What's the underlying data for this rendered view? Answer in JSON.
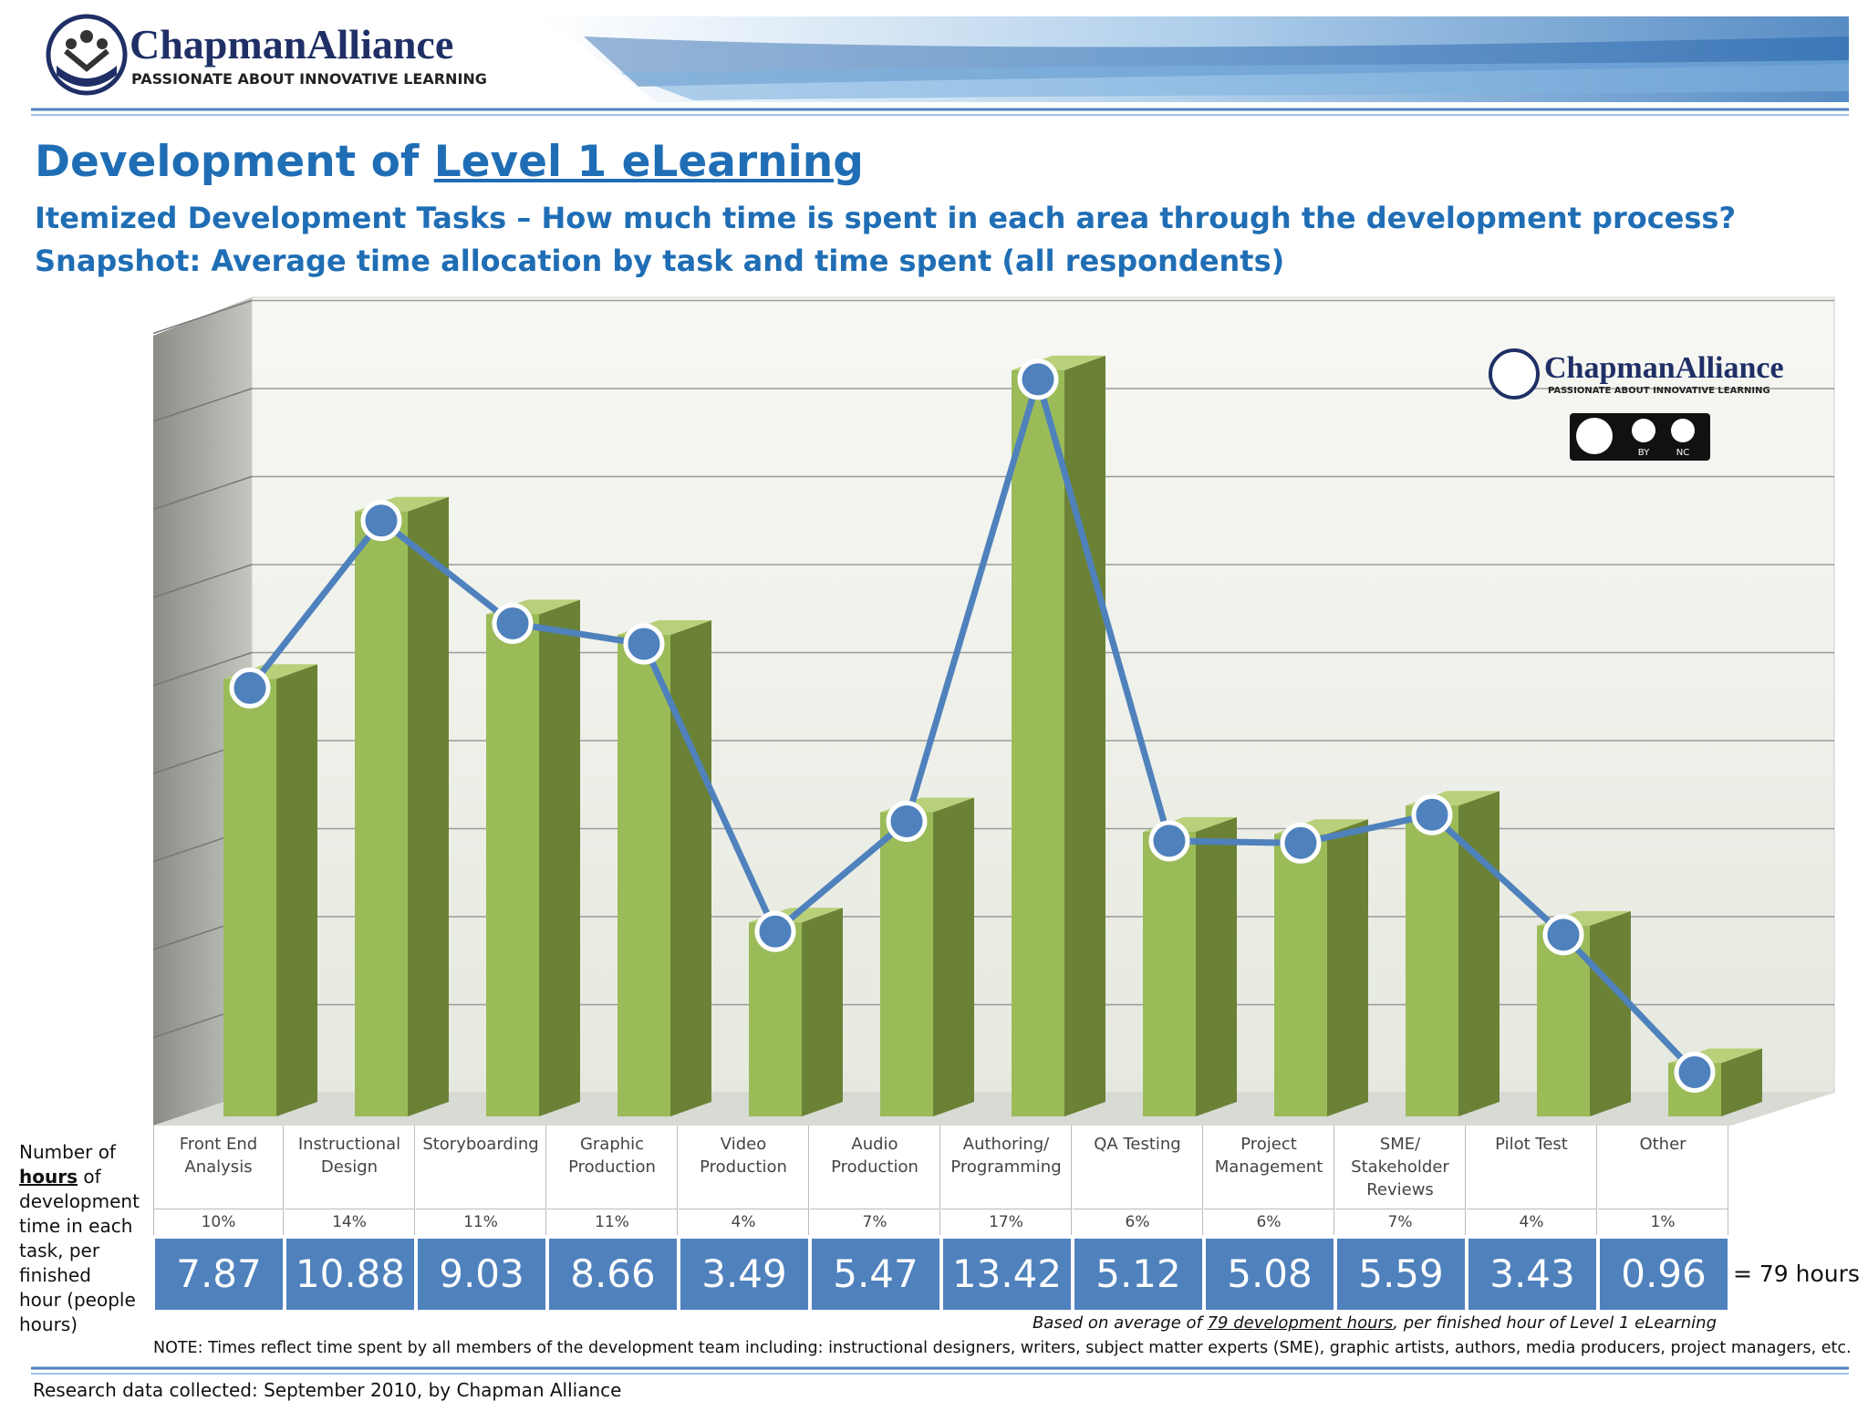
{
  "header": {
    "logo_name": "ChapmanAlliance",
    "logo_tagline": "PASSIONATE ABOUT INNOVATIVE LEARNING"
  },
  "title_prefix": "Development of",
  "title_emphasis": "Level 1 eLearning",
  "subtitle": "Itemized Development Tasks – How much time is spent in each area through the development process?",
  "snapshot": "Snapshot: Average time allocation by task and time spent (all respondents)",
  "chart_data": {
    "type": "bar",
    "categories": [
      "Front End Analysis",
      "Instructional Design",
      "Storyboarding",
      "Graphic Production",
      "Video Production",
      "Audio Production",
      "Authoring/ Programming",
      "QA Testing",
      "Project Management",
      "SME/ Stakeholder Reviews",
      "Pilot Test",
      "Other"
    ],
    "values": [
      7.87,
      10.88,
      9.03,
      8.66,
      3.49,
      5.47,
      13.42,
      5.12,
      5.08,
      5.59,
      3.43,
      0.96
    ],
    "shares": [
      {
        "value": 10,
        "label": "10%"
      },
      {
        "value": 14,
        "label": "14%"
      },
      {
        "value": 11,
        "label": "11%"
      },
      {
        "value": 11,
        "label": "11%"
      },
      {
        "value": 4,
        "label": "4%"
      },
      {
        "value": 7,
        "label": "7%"
      },
      {
        "value": 17,
        "label": "17%"
      },
      {
        "value": 6,
        "label": "6%"
      },
      {
        "value": 6,
        "label": "6%"
      },
      {
        "value": 7,
        "label": "7%"
      },
      {
        "value": 4,
        "label": "4%"
      },
      {
        "value": 1,
        "label": "1%"
      }
    ],
    "color": "#9bbb59",
    "line_color": "#4f81bd",
    "ylim": [
      0,
      14.5
    ],
    "total_label": "= 79 hours",
    "watermark_name": "ChapmanAlliance",
    "watermark_tagline": "PASSIONATE ABOUT INNOVATIVE LEARNING",
    "license_by": "BY",
    "license_nc": "NC"
  },
  "axis_note": {
    "before": "Number of",
    "emphasis": "hours",
    "after": "of development time in each task, per finished hour (people hours)"
  },
  "basis_note": {
    "before": "Based on average of",
    "emphasis": "79 development hours",
    "after": ", per finished hour of Level 1 eLearning"
  },
  "note": "NOTE: Times reflect time spent by all members of the development team including: instructional designers, writers, subject matter experts (SME), graphic artists, authors, media producers, project managers, etc.",
  "footer": "Research data collected: September 2010, by Chapman Alliance"
}
